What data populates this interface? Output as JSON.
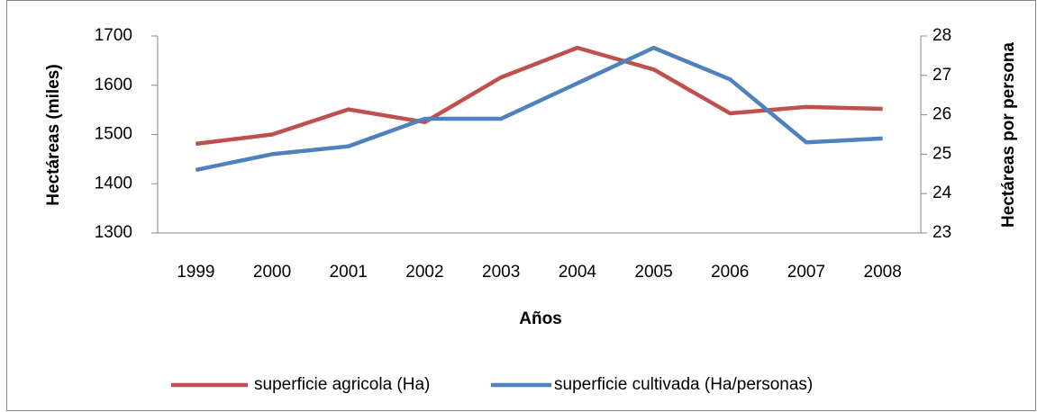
{
  "chart_data": {
    "type": "line",
    "x_label": "Años",
    "y_label": "Hectáreas (miles)",
    "y2_label": "Hectáreas por persona",
    "categories": [
      "1999",
      "2000",
      "2001",
      "2002",
      "2003",
      "2004",
      "2005",
      "2006",
      "2007",
      "2008"
    ],
    "series": [
      {
        "name": "superficie agricola (Ha)",
        "color": "#c0504d",
        "values": [
          1481,
          1500,
          1551,
          1525,
          1616,
          1676,
          1632,
          1543,
          1556,
          1552
        ]
      },
      {
        "name": "superficie cultivada (Ha/personas)",
        "color": "#4f81bd",
        "axis": "y2",
        "values": [
          24.6,
          25.0,
          25.2,
          25.9,
          25.9,
          26.8,
          27.7,
          26.9,
          25.3,
          25.4
        ]
      }
    ],
    "ylim": [
      1300,
      1700
    ],
    "yticks": [
      1300,
      1400,
      1500,
      1600,
      1700
    ],
    "y2lim": [
      23,
      28
    ],
    "y2ticks": [
      23,
      24,
      25,
      26,
      27,
      28
    ],
    "legend": "bottom",
    "grid": false
  }
}
